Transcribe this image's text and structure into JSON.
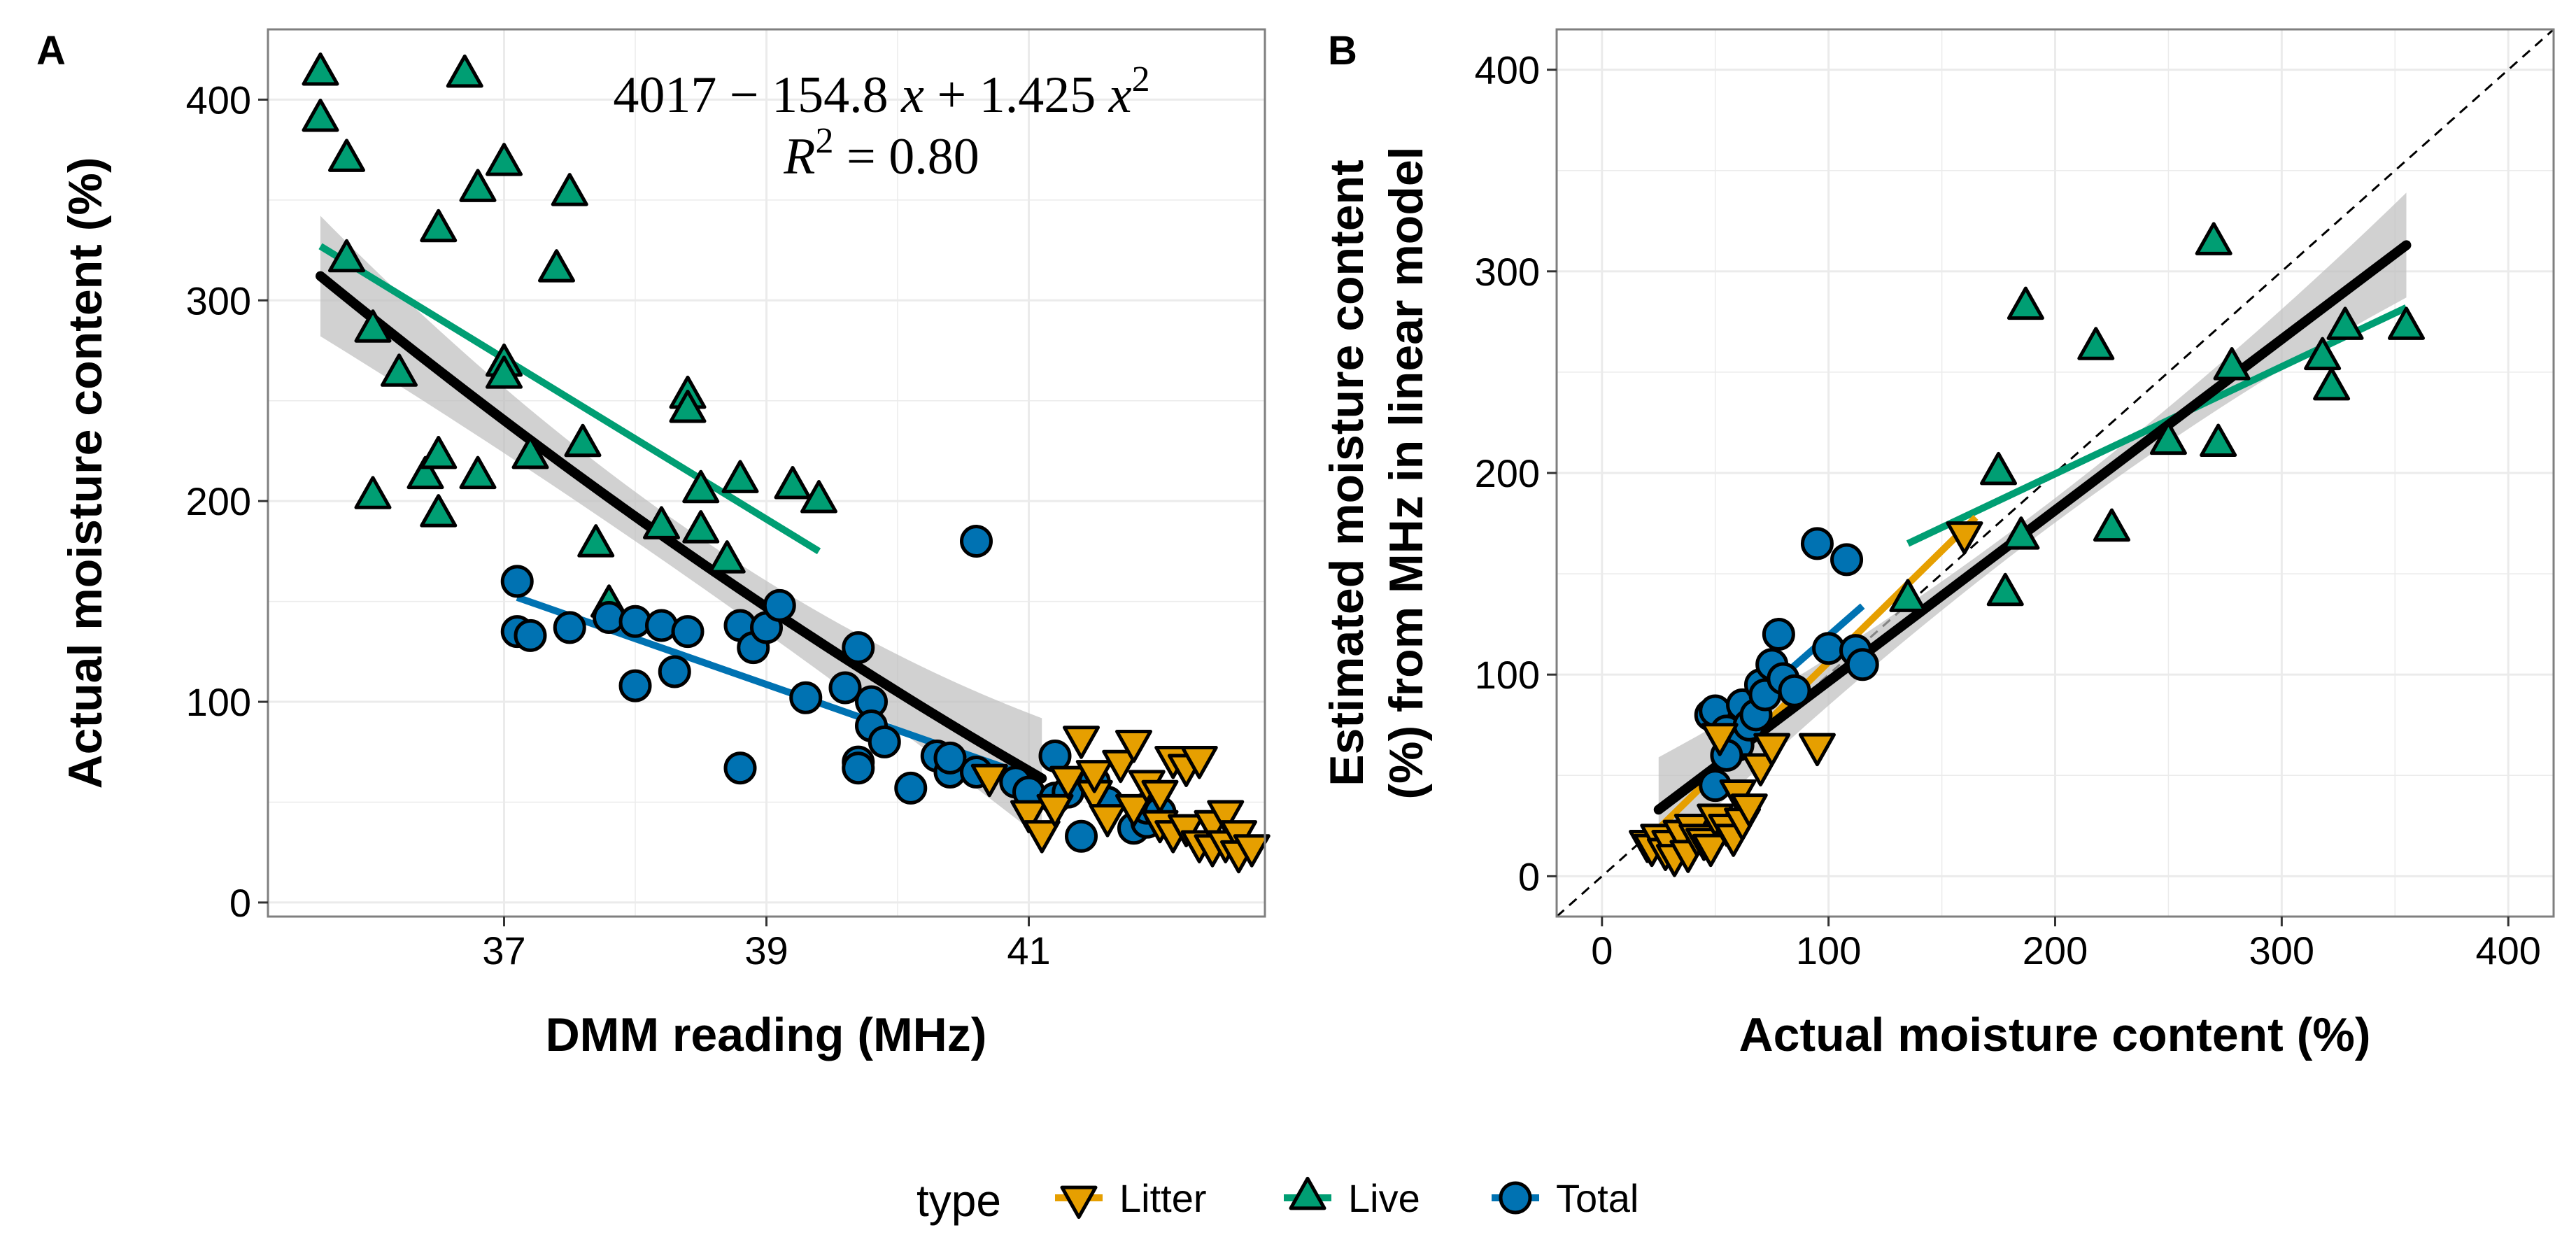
{
  "chart_data": [
    {
      "panel": "A",
      "type": "scatter",
      "xlabel": "DMM reading (MHz)",
      "ylabel": "Actual moisture content (%)",
      "xlim": [
        35.2,
        42.8
      ],
      "ylim": [
        -7,
        435
      ],
      "xticks": [
        37,
        39,
        41
      ],
      "yticks": [
        0,
        100,
        200,
        300,
        400
      ],
      "equation_parts": {
        "e1": "4017 − 154.8 ",
        "e2": "x",
        "e3": " + 1.425 ",
        "e4": "x",
        "e5": "2",
        "r1": "R",
        "r2": "2",
        "r3": " = 0.80"
      },
      "fit": {
        "type": "quadratic",
        "coefficients": [
          4017,
          -154.8,
          1.425
        ],
        "x_range": [
          35.6,
          41.1
        ],
        "band_halfwidth": 20
      },
      "series": [
        {
          "name": "Live",
          "marker": "triangle-up",
          "x": [
            35.6,
            35.6,
            35.8,
            35.8,
            36.0,
            36.0,
            36.2,
            36.4,
            36.5,
            36.5,
            36.5,
            36.7,
            36.8,
            36.8,
            37.0,
            37.0,
            37.0,
            37.2,
            37.4,
            37.5,
            37.6,
            37.7,
            37.8,
            38.2,
            38.4,
            38.4,
            38.5,
            38.5,
            38.7,
            38.8,
            39.2,
            39.4
          ],
          "y": [
            413,
            390,
            370,
            320,
            285,
            202,
            263,
            212,
            335,
            222,
            193,
            412,
            355,
            212,
            368,
            268,
            262,
            222,
            315,
            353,
            228,
            178,
            148,
            187,
            252,
            245,
            205,
            185,
            170,
            210,
            207,
            200
          ]
        },
        {
          "name": "Total",
          "marker": "circle",
          "x": [
            37.1,
            37.1,
            37.2,
            37.5,
            37.8,
            38.0,
            38.0,
            38.2,
            38.3,
            38.4,
            38.8,
            38.8,
            38.9,
            39.0,
            39.1,
            39.3,
            39.6,
            39.7,
            39.7,
            39.7,
            39.8,
            39.8,
            39.9,
            40.1,
            40.3,
            40.4,
            40.4,
            40.6,
            40.6,
            40.9,
            41.0,
            41.2,
            41.2,
            41.3,
            41.4,
            41.5,
            41.6,
            41.8,
            41.9,
            41.9,
            42.0
          ],
          "y": [
            160,
            135,
            133,
            137,
            142,
            108,
            140,
            138,
            115,
            135,
            138,
            67,
            127,
            137,
            148,
            102,
            107,
            127,
            70,
            67,
            100,
            88,
            80,
            57,
            73,
            65,
            72,
            180,
            65,
            60,
            55,
            73,
            52,
            55,
            33,
            60,
            50,
            37,
            40,
            47,
            45
          ]
        },
        {
          "name": "Litter",
          "marker": "triangle-down",
          "x": [
            40.7,
            41.0,
            41.1,
            41.2,
            41.3,
            41.4,
            41.5,
            41.5,
            41.6,
            41.7,
            41.8,
            41.8,
            41.9,
            42.0,
            42.0,
            42.1,
            42.1,
            42.2,
            42.2,
            42.3,
            42.3,
            42.4,
            42.4,
            42.5,
            42.5,
            42.6,
            42.6,
            42.7
          ],
          "y": [
            63,
            45,
            35,
            48,
            62,
            82,
            55,
            65,
            43,
            70,
            80,
            48,
            60,
            55,
            40,
            72,
            35,
            68,
            38,
            30,
            72,
            40,
            28,
            45,
            30,
            35,
            25,
            28
          ]
        }
      ],
      "group_fits": [
        {
          "name": "Live",
          "x": [
            35.6,
            39.4
          ],
          "y": [
            327,
            175
          ]
        },
        {
          "name": "Total",
          "x": [
            37.1,
            41.0
          ],
          "y": [
            152,
            63
          ]
        }
      ]
    },
    {
      "panel": "B",
      "type": "scatter",
      "xlabel": "Actual moisture content (%)",
      "ylabel_line1": "Estimated moisture content",
      "ylabel_line2": "(%) from MHz in linear model",
      "xlim": [
        -20,
        420
      ],
      "ylim": [
        -20,
        420
      ],
      "xticks": [
        0,
        100,
        200,
        300,
        400
      ],
      "yticks": [
        0,
        100,
        200,
        300,
        400
      ],
      "identity_line": true,
      "fit": {
        "type": "linear",
        "x_range": [
          25,
          355
        ],
        "y_range": [
          33,
          313
        ]
      },
      "series": [
        {
          "name": "Live",
          "marker": "triangle-up",
          "x": [
            135,
            175,
            178,
            185,
            187,
            218,
            225,
            250,
            270,
            272,
            278,
            318,
            322,
            328,
            355
          ],
          "y": [
            137,
            200,
            140,
            168,
            282,
            262,
            172,
            215,
            314,
            214,
            252,
            257,
            242,
            272,
            272
          ]
        },
        {
          "name": "Total",
          "marker": "circle",
          "x": [
            48,
            50,
            55,
            60,
            62,
            65,
            68,
            70,
            72,
            75,
            78,
            80,
            85,
            95,
            100,
            108,
            112,
            115,
            50,
            55
          ],
          "y": [
            80,
            82,
            72,
            65,
            85,
            75,
            80,
            95,
            90,
            105,
            120,
            98,
            92,
            165,
            113,
            157,
            112,
            105,
            45,
            60
          ]
        },
        {
          "name": "Litter",
          "marker": "triangle-down",
          "x": [
            20,
            22,
            25,
            28,
            30,
            32,
            35,
            38,
            40,
            42,
            45,
            48,
            50,
            52,
            55,
            58,
            60,
            62,
            65,
            70,
            75,
            95,
            160
          ],
          "y": [
            17,
            15,
            20,
            13,
            17,
            10,
            22,
            12,
            25,
            20,
            18,
            15,
            30,
            70,
            25,
            20,
            42,
            28,
            35,
            55,
            65,
            65,
            170
          ]
        }
      ],
      "group_fits": [
        {
          "name": "Live",
          "x": [
            135,
            355
          ],
          "y": [
            165,
            282
          ]
        },
        {
          "name": "Total",
          "x": [
            48,
            115
          ],
          "y": [
            68,
            134
          ]
        },
        {
          "name": "Litter",
          "x": [
            20,
            165
          ],
          "y": [
            18,
            178
          ]
        }
      ]
    }
  ],
  "legend": {
    "title": "type",
    "items": [
      {
        "label": "Litter",
        "color": "#E69F00",
        "marker": "triangle-down"
      },
      {
        "label": "Live",
        "color": "#009E73",
        "marker": "triangle-up"
      },
      {
        "label": "Total",
        "color": "#0072B2",
        "marker": "circle"
      }
    ]
  },
  "colors": {
    "Litter": "#E69F00",
    "Live": "#009E73",
    "Total": "#0072B2",
    "fit": "#000000",
    "band": "#BEBEBE",
    "grid": "#EBEBEB",
    "panel_border": "#7F7F7F"
  }
}
